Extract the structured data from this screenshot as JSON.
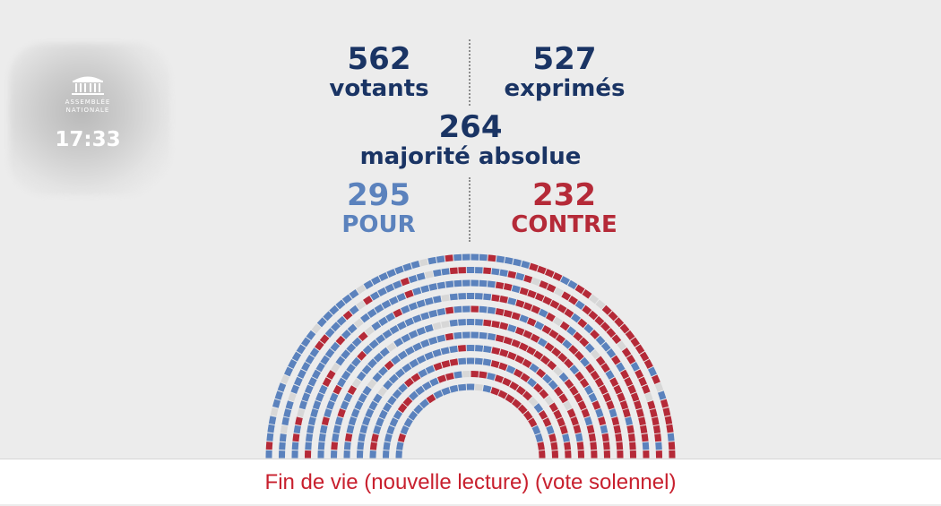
{
  "logo": {
    "line1": "ASSEMBLÉE",
    "line2": "NATIONALE"
  },
  "clock": "17:33",
  "stats": {
    "votants": {
      "value": "562",
      "label": "votants"
    },
    "exprimes": {
      "value": "527",
      "label": "exprimés"
    },
    "majorite": {
      "value": "264",
      "label": "majorité absolue"
    },
    "pour": {
      "value": "295",
      "label": "POUR"
    },
    "contre": {
      "value": "232",
      "label": "CONTRE"
    }
  },
  "colors": {
    "navy": "#1a3464",
    "pour": "#5b82bd",
    "contre": "#b52a38",
    "absent": "#d7d7d7",
    "caption": "#c8202e"
  },
  "hemicycle": {
    "pour": 295,
    "contre": 232,
    "other": 35
  },
  "caption": "Fin de vie (nouvelle lecture) (vote solennel)"
}
